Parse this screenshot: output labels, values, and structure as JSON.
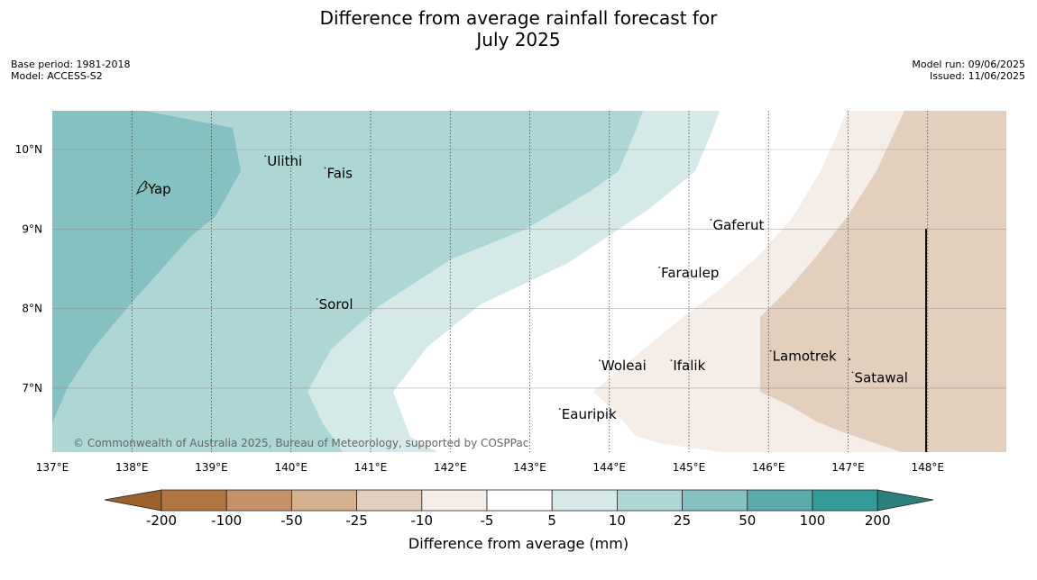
{
  "title_line1": "Difference from average rainfall forecast for",
  "title_line2": "July 2025",
  "meta_left": {
    "base_period": "Base period: 1981-2018",
    "model": "Model: ACCESS-S2"
  },
  "meta_right": {
    "model_run": "Model run: 09/06/2025",
    "issued": "Issued: 11/06/2025"
  },
  "copyright": "© Commonwealth of Australia 2025, Bureau of Meteorology, supported by COSPPac",
  "map": {
    "lon_ticks": [
      "137°E",
      "138°E",
      "139°E",
      "140°E",
      "141°E",
      "142°E",
      "143°E",
      "144°E",
      "145°E",
      "146°E",
      "147°E",
      "148°E"
    ],
    "lat_ticks": [
      "10°N",
      "9°N",
      "8°N",
      "7°N"
    ],
    "places": [
      {
        "name": "Yap",
        "lon": 138.2,
        "lat": 9.5
      },
      {
        "name": "Ulithi",
        "lon": 139.7,
        "lat": 9.85
      },
      {
        "name": "Fais",
        "lon": 140.45,
        "lat": 9.7
      },
      {
        "name": "Gaferut",
        "lon": 145.3,
        "lat": 9.05
      },
      {
        "name": "Faraulep",
        "lon": 144.65,
        "lat": 8.45
      },
      {
        "name": "Sorol",
        "lon": 140.35,
        "lat": 8.05
      },
      {
        "name": "Lamotrek",
        "lon": 146.05,
        "lat": 7.4
      },
      {
        "name": "Satawal",
        "lon": 147.08,
        "lat": 7.13
      },
      {
        "name": "Woleai",
        "lon": 143.9,
        "lat": 7.28
      },
      {
        "name": "Ifalik",
        "lon": 144.8,
        "lat": 7.28
      },
      {
        "name": "Eauripik",
        "lon": 143.4,
        "lat": 6.67
      }
    ]
  },
  "colorbar": {
    "label": "Difference from average (mm)",
    "ticks": [
      "-200",
      "-100",
      "-50",
      "-25",
      "-10",
      "-5",
      "5",
      "10",
      "25",
      "50",
      "100",
      "200"
    ],
    "colors": [
      "#9b612a",
      "#b07540",
      "#c4916a",
      "#d6b190",
      "#e3cfbe",
      "#f5ede8",
      "#ffffff",
      "#d5e9e8",
      "#aed6d5",
      "#84c1c0",
      "#5aabaa",
      "#339b98",
      "#2c7f7d"
    ]
  }
}
